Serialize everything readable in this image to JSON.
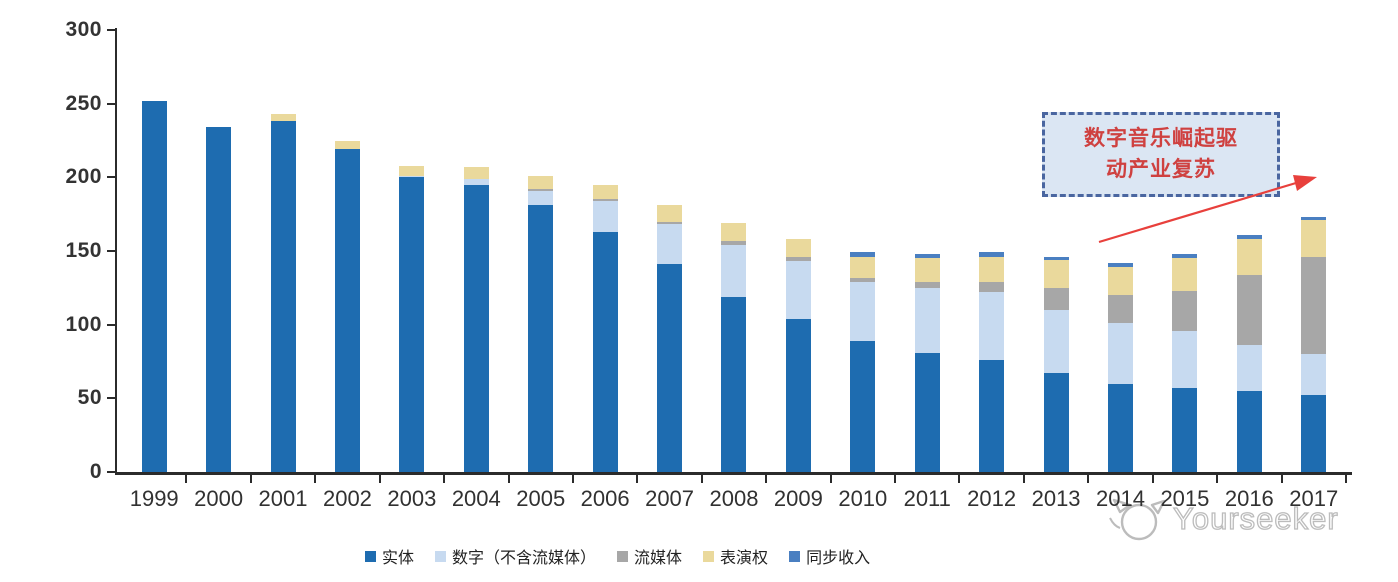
{
  "chart_data": {
    "type": "bar",
    "stacked": true,
    "title": "",
    "xlabel": "",
    "ylabel": "",
    "categories": [
      "1999",
      "2000",
      "2001",
      "2002",
      "2003",
      "2004",
      "2005",
      "2006",
      "2007",
      "2008",
      "2009",
      "2010",
      "2011",
      "2012",
      "2013",
      "2014",
      "2015",
      "2016",
      "2017"
    ],
    "series": [
      {
        "name": "实体",
        "color": "#1e6cb0",
        "values": [
          252,
          234,
          238,
          219,
          200,
          195,
          181,
          163,
          141,
          119,
          104,
          89,
          81,
          76,
          67,
          60,
          57,
          55,
          52
        ]
      },
      {
        "name": "数字（不含流媒体）",
        "color": "#c7daf0",
        "values": [
          0,
          0,
          0,
          0,
          1,
          4,
          10,
          21,
          27,
          35,
          39,
          40,
          44,
          46,
          43,
          41,
          39,
          31,
          28
        ]
      },
      {
        "name": "流媒体",
        "color": "#a7a7a7",
        "values": [
          0,
          0,
          0,
          0,
          0,
          0,
          1,
          1,
          2,
          3,
          3,
          3,
          4,
          7,
          15,
          19,
          27,
          48,
          66
        ]
      },
      {
        "name": "表演权",
        "color": "#ead99c",
        "values": [
          0,
          0,
          5,
          6,
          7,
          8,
          9,
          10,
          11,
          12,
          12,
          14,
          16,
          17,
          19,
          19,
          22,
          24,
          25
        ]
      },
      {
        "name": "同步收入",
        "color": "#4a7fc1",
        "values": [
          0,
          0,
          0,
          0,
          0,
          0,
          0,
          0,
          0,
          0,
          0,
          3,
          3,
          3,
          2,
          3,
          3,
          3,
          2
        ]
      }
    ],
    "ylim": [
      0,
      300
    ],
    "y_ticks": [
      0,
      50,
      100,
      150,
      200,
      250,
      300
    ],
    "grid": false,
    "legend_position": "bottom"
  },
  "annotation": {
    "line1": "数字音乐崛起驱",
    "line2": "动产业复苏"
  },
  "watermark": {
    "text": "Yourseeker"
  },
  "colors": {
    "axis": "#2b2b2b",
    "annotation_fill": "#dbe6f3",
    "annotation_border": "#4a66a0",
    "annotation_text": "#cf4140",
    "arrow_red": "#e8403c",
    "watermark_gray": "#b9b9b9"
  }
}
